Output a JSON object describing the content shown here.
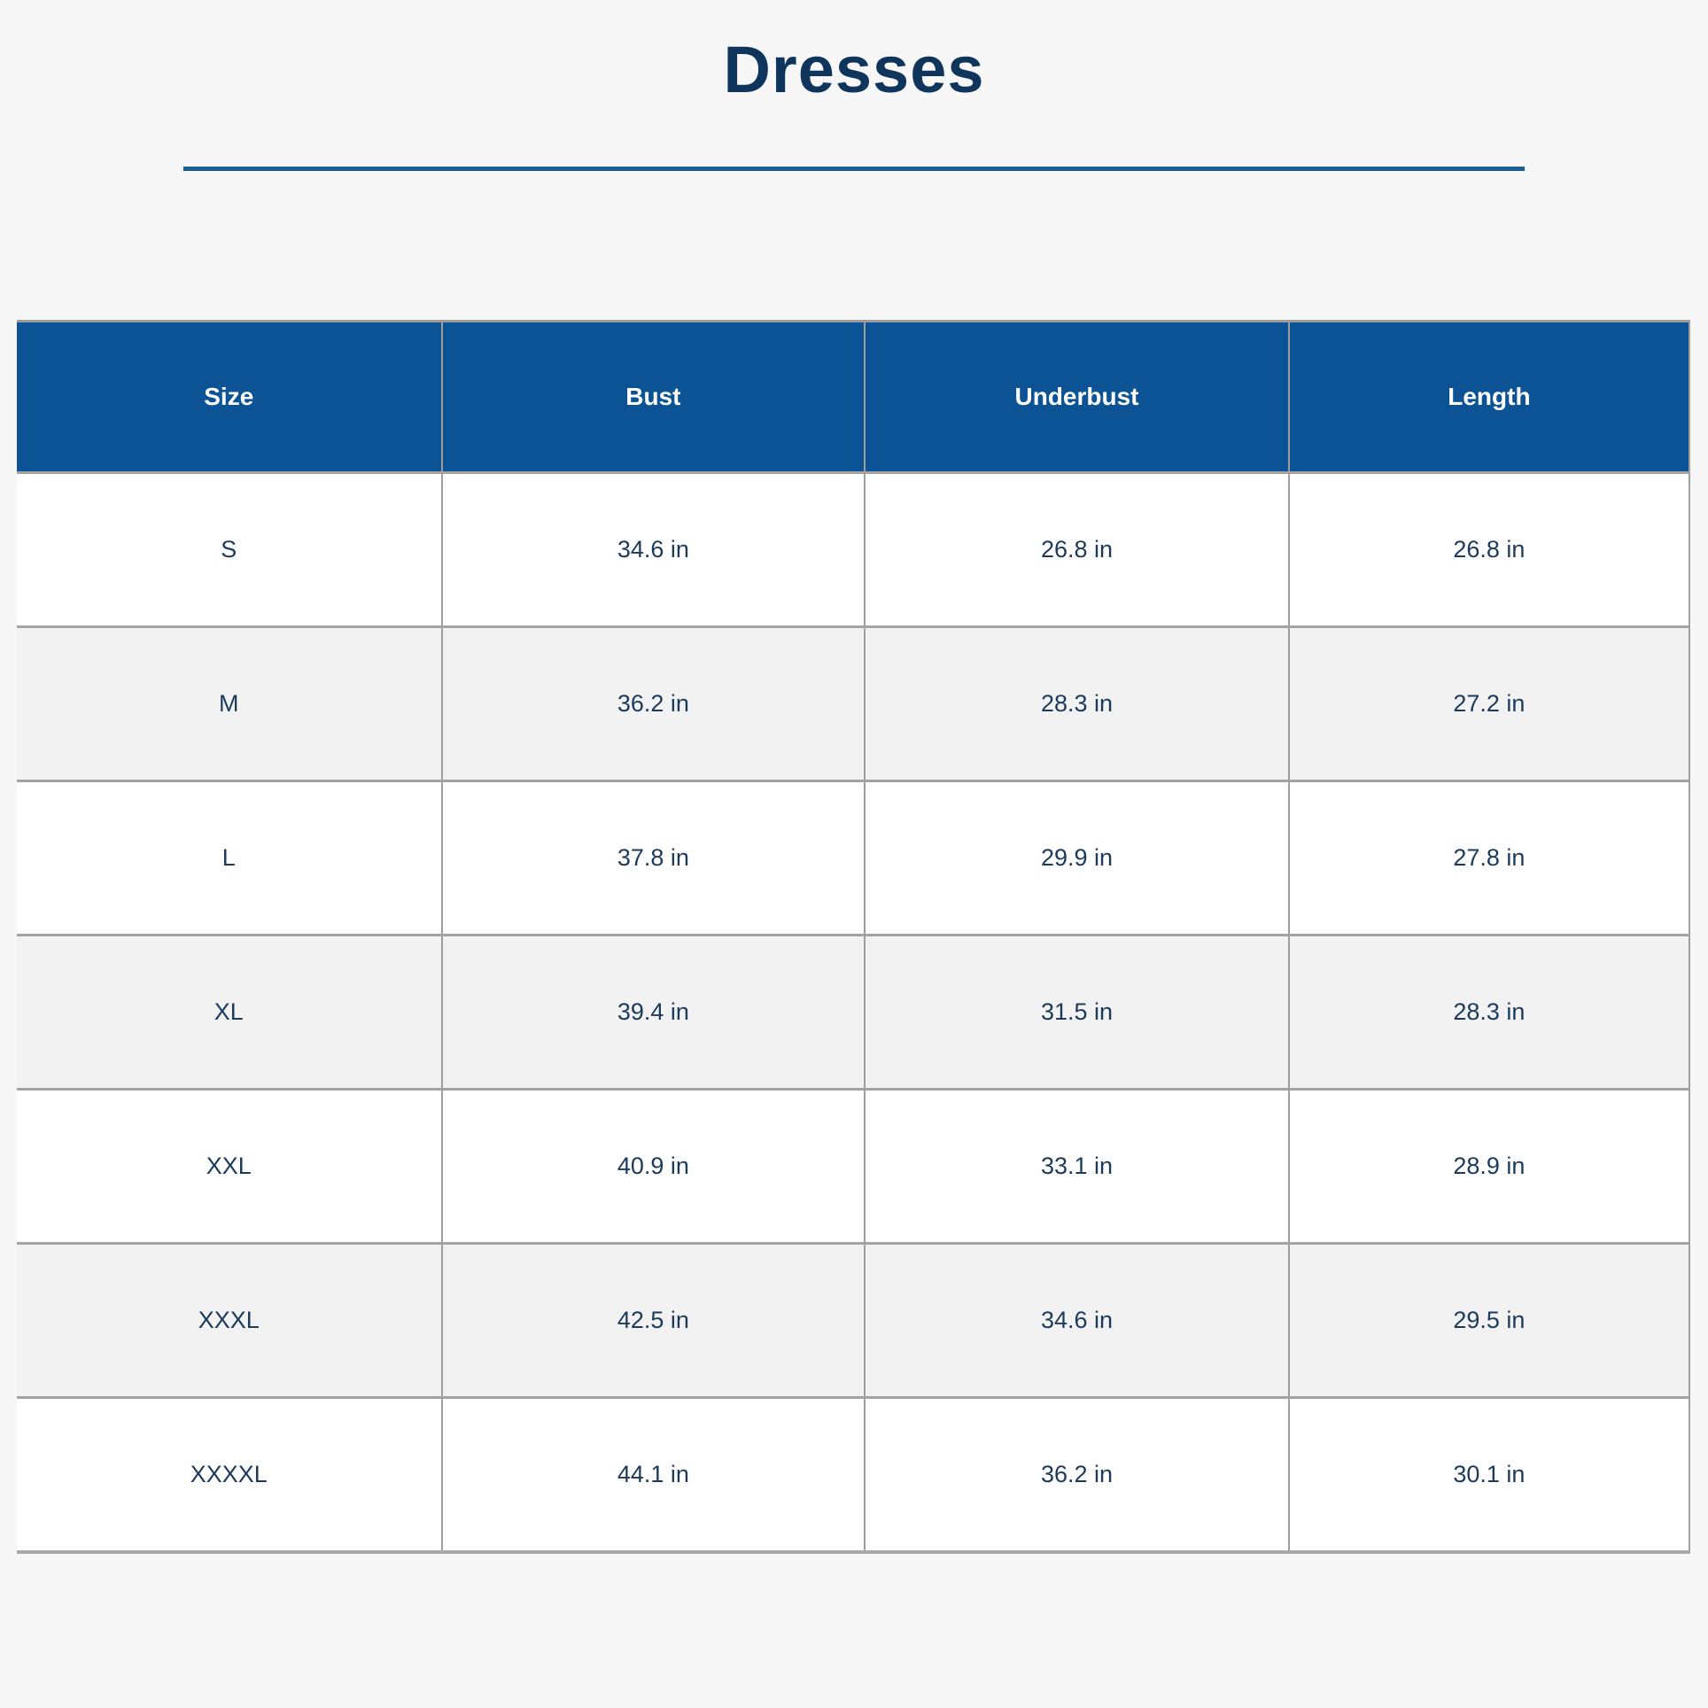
{
  "page": {
    "title": "Dresses",
    "colors": {
      "page_background": "#f7f7f7",
      "title_text": "#0f355c",
      "divider_blue": "#1b5e9c",
      "header_background": "#0b5394",
      "header_text": "#ffffff",
      "cell_text": "#1b3a5c",
      "row_background": "#ffffff",
      "row_alt_background": "#f2f2f2",
      "border_gray": "#9e9e9e"
    }
  },
  "chart_data": {
    "type": "table",
    "title": "Dresses",
    "units": "in",
    "columns": [
      "Size",
      "Bust",
      "Underbust",
      "Length"
    ],
    "rows": [
      [
        "S",
        "34.6 in",
        "26.8 in",
        "26.8 in"
      ],
      [
        "M",
        "36.2 in",
        "28.3 in",
        "27.2 in"
      ],
      [
        "L",
        "37.8 in",
        "29.9 in",
        "27.8 in"
      ],
      [
        "XL",
        "39.4 in",
        "31.5 in",
        "28.3 in"
      ],
      [
        "XXL",
        "40.9 in",
        "33.1 in",
        "28.9 in"
      ],
      [
        "XXXL",
        "42.5 in",
        "34.6 in",
        "29.5 in"
      ],
      [
        "XXXXL",
        "44.1 in",
        "36.2 in",
        "30.1 in"
      ]
    ],
    "numeric": {
      "categories": [
        "S",
        "M",
        "L",
        "XL",
        "XXL",
        "XXXL",
        "XXXXL"
      ],
      "series": [
        {
          "name": "Bust",
          "values": [
            34.6,
            36.2,
            37.8,
            39.4,
            40.9,
            42.5,
            44.1
          ]
        },
        {
          "name": "Underbust",
          "values": [
            26.8,
            28.3,
            29.9,
            31.5,
            33.1,
            34.6,
            36.2
          ]
        },
        {
          "name": "Length",
          "values": [
            26.8,
            27.2,
            27.8,
            28.3,
            28.9,
            29.5,
            30.1
          ]
        }
      ]
    }
  }
}
